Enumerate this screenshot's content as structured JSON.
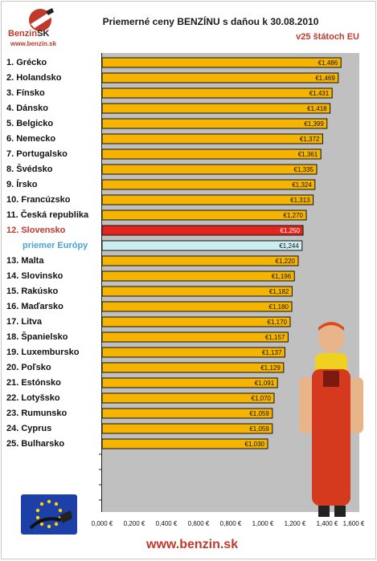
{
  "logo": {
    "brand": "Benzin",
    "brand_suffix": "SK",
    "url": "www.benzin.sk"
  },
  "header": {
    "title": "Priemerné ceny BENZÍNU s daňou k 30.08.2010",
    "subtitle": "v25 štátoch EU"
  },
  "footer": {
    "url": "www.benzin.sk"
  },
  "colors": {
    "bar": "#f5b400",
    "highlight": "#e3261d",
    "average": "#cdeef0",
    "plot_bg": "#c0c0c0"
  },
  "chart_data": {
    "type": "bar",
    "orientation": "horizontal",
    "title": "Priemerné ceny BENZÍNU s daňou k 30.08.2010",
    "subtitle": "v25 štátoch EU",
    "categories": [
      "1. Grécko",
      "2. Holandsko",
      "3. Fínsko",
      "4. Dánsko",
      "5. Belgicko",
      "6. Nemecko",
      "7. Portugalsko",
      "8. Švédsko",
      "9. Írsko",
      "10. Francúzsko",
      "11. Česká republika",
      "12. Slovensko",
      "priemer Európy",
      "13. Malta",
      "14. Slovinsko",
      "15. Rakúsko",
      "16. Maďarsko",
      "17. Litva",
      "18. Španielsko",
      "19. Luxembursko",
      "20. Poľsko",
      "21. Estónsko",
      "22. Lotyšsko",
      "23. Rumunsko",
      "24. Cyprus",
      "25. Bulharsko"
    ],
    "values": [
      1.486,
      1.469,
      1.431,
      1.418,
      1.399,
      1.372,
      1.361,
      1.335,
      1.324,
      1.313,
      1.27,
      1.25,
      1.244,
      1.22,
      1.196,
      1.182,
      1.18,
      1.17,
      1.157,
      1.137,
      1.129,
      1.091,
      1.07,
      1.059,
      1.059,
      1.03
    ],
    "value_labels": [
      "€1,486",
      "€1,469",
      "€1,431",
      "€1,418",
      "€1,399",
      "€1,372",
      "€1,361",
      "€1,335",
      "€1,324",
      "€1,313",
      "€1,270",
      "€1,250",
      "€1,244",
      "€1,220",
      "€1,196",
      "€1,182",
      "€1,180",
      "€1,170",
      "€1,157",
      "€1,137",
      "€1,129",
      "€1,091",
      "€1,070",
      "€1,059",
      "€1,059",
      "€1,030"
    ],
    "highlight_index": 11,
    "average_index": 12,
    "xlim": [
      0,
      1.6
    ],
    "xticks": [
      "0,000 €",
      "0,200 €",
      "0,400 €",
      "0,600 €",
      "0,800 €",
      "1,000 €",
      "1,200 €",
      "1,400 €",
      "1,600 €"
    ],
    "grid": false,
    "legend": "none"
  }
}
